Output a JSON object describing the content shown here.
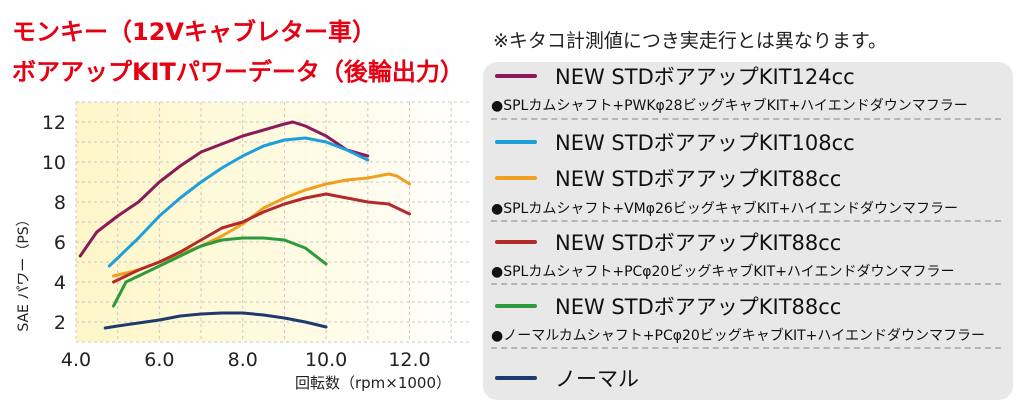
{
  "title": {
    "line1": "モンキー（12Vキャブレター車）",
    "line2": "ボアアップKITパワーデータ（後輪出力）"
  },
  "note": "※キタコ計測値につき実走行とは異なります。",
  "colors": {
    "title": "#e60012",
    "plot_background": "#fdf9dc",
    "legend_background": "#e8e8e8"
  },
  "legend": {
    "items": [
      {
        "label": "NEW STDボアアップKIT124cc",
        "color": "#8b1a5a",
        "spec": "●SPLカムシャフト+PWKφ28ビッグキャブKIT+ハイエンドダウンマフラー"
      },
      {
        "label": "NEW STDボアアップKIT108cc",
        "color": "#1e9fd9",
        "spec": ""
      },
      {
        "label": "NEW STDボアアップKIT88cc",
        "color": "#f0a020",
        "spec": "●SPLカムシャフト+VMφ26ビッグキャブKIT+ハイエンドダウンマフラー"
      },
      {
        "label": "NEW STDボアアップKIT88cc",
        "color": "#b22a2a",
        "spec": "●SPLカムシャフト+PCφ20ビッグキャブKIT+ハイエンドダウンマフラー"
      },
      {
        "label": "NEW STDボアアップKIT88cc",
        "color": "#2e9a3e",
        "spec": "●ノーマルカムシャフト+PCφ20ビッグキャブKIT+ハイエンドダウンマフラー"
      },
      {
        "label": "ノーマル",
        "color": "#1f3a70",
        "spec": ""
      }
    ]
  },
  "chart_data": {
    "type": "line",
    "title": "モンキー（12Vキャブレター車） ボアアップKITパワーデータ（後輪出力）",
    "xlabel": "回転数（rpm×1000）",
    "ylabel": "SAE パワー（PS）",
    "xlim": [
      4.0,
      13.5
    ],
    "ylim": [
      1.0,
      13.0
    ],
    "xticks": [
      "4.0",
      "6.0",
      "8.0",
      "10.0",
      "12.0"
    ],
    "yticks": [
      "2",
      "4",
      "6",
      "8",
      "10",
      "12"
    ],
    "grid": true,
    "series": [
      {
        "name": "NEW STDボアアップKIT124cc",
        "color": "#8b1a5a",
        "x": [
          4.1,
          4.5,
          5.0,
          5.5,
          6.0,
          6.5,
          7.0,
          7.5,
          8.0,
          8.5,
          9.0,
          9.2,
          9.5,
          10.0,
          10.5,
          11.0
        ],
        "y": [
          5.3,
          6.5,
          7.3,
          8.0,
          9.0,
          9.8,
          10.5,
          10.9,
          11.3,
          11.6,
          11.9,
          12.0,
          11.8,
          11.3,
          10.6,
          10.3
        ]
      },
      {
        "name": "NEW STDボアアップKIT108cc",
        "color": "#1e9fd9",
        "x": [
          4.8,
          5.0,
          5.5,
          6.0,
          6.5,
          7.0,
          7.5,
          8.0,
          8.5,
          9.0,
          9.5,
          10.0,
          10.5,
          11.0
        ],
        "y": [
          4.8,
          5.2,
          6.2,
          7.3,
          8.2,
          9.0,
          9.7,
          10.3,
          10.8,
          11.1,
          11.2,
          11.0,
          10.6,
          10.1
        ]
      },
      {
        "name": "NEW STDボアアップKIT88cc (VMφ26)",
        "color": "#f0a020",
        "x": [
          4.9,
          5.5,
          6.0,
          6.5,
          7.0,
          7.5,
          8.0,
          8.5,
          9.0,
          9.5,
          10.0,
          10.5,
          11.0,
          11.5,
          11.7,
          12.0
        ],
        "y": [
          4.3,
          4.6,
          5.0,
          5.4,
          5.8,
          6.3,
          6.9,
          7.7,
          8.2,
          8.6,
          8.9,
          9.1,
          9.2,
          9.4,
          9.3,
          8.9
        ]
      },
      {
        "name": "NEW STDボアアップKIT88cc (PCφ20)",
        "color": "#b22a2a",
        "x": [
          4.9,
          5.5,
          6.0,
          6.5,
          7.0,
          7.5,
          8.0,
          8.5,
          9.0,
          9.5,
          10.0,
          10.5,
          11.0,
          11.5,
          12.0
        ],
        "y": [
          4.0,
          4.6,
          5.0,
          5.5,
          6.1,
          6.7,
          7.0,
          7.5,
          7.9,
          8.2,
          8.4,
          8.2,
          8.0,
          7.9,
          7.4
        ]
      },
      {
        "name": "NEW STDボアアップKIT88cc (ノーマルカム)",
        "color": "#2e9a3e",
        "x": [
          4.9,
          5.2,
          5.5,
          6.0,
          6.5,
          7.0,
          7.5,
          8.0,
          8.5,
          9.0,
          9.5,
          10.0
        ],
        "y": [
          2.8,
          4.0,
          4.3,
          4.8,
          5.3,
          5.8,
          6.1,
          6.2,
          6.2,
          6.1,
          5.7,
          4.9
        ]
      },
      {
        "name": "ノーマル",
        "color": "#1f3a70",
        "x": [
          4.7,
          5.0,
          5.5,
          6.0,
          6.5,
          7.0,
          7.5,
          8.0,
          8.5,
          9.0,
          9.5,
          10.0
        ],
        "y": [
          1.7,
          1.8,
          1.95,
          2.1,
          2.3,
          2.4,
          2.45,
          2.45,
          2.35,
          2.2,
          2.0,
          1.75
        ]
      }
    ]
  }
}
